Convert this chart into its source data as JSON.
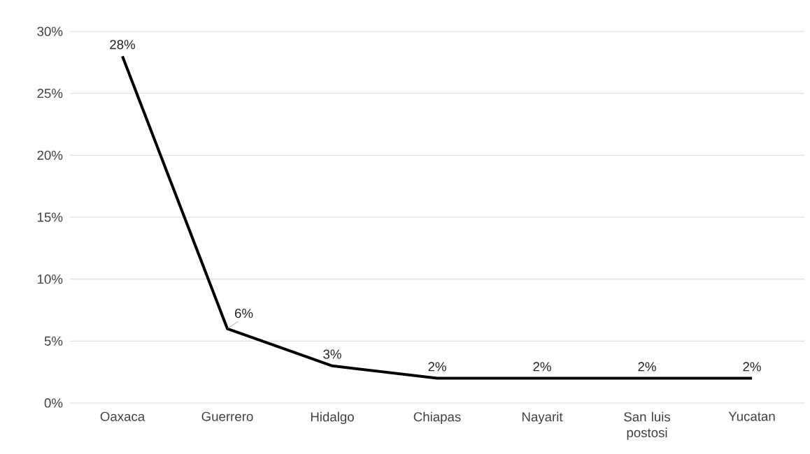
{
  "chart_data": {
    "type": "line",
    "categories": [
      "Oaxaca",
      "Guerrero",
      "Hidalgo",
      "Chiapas",
      "Nayarit",
      "San luis postosi",
      "Yucatan"
    ],
    "series": [
      {
        "color": "#000000",
        "values": [
          28,
          6,
          3,
          2,
          2,
          2,
          2
        ],
        "value_labels": [
          "28%",
          "6%",
          "3%",
          "2%",
          "2%",
          "2%",
          "2%"
        ]
      }
    ],
    "ylim": [
      0,
      30
    ],
    "yticks": [
      {
        "value": 0,
        "label": "0%"
      },
      {
        "value": 5,
        "label": "5%"
      },
      {
        "value": 10,
        "label": "10%"
      },
      {
        "value": 15,
        "label": "15%"
      },
      {
        "value": 20,
        "label": "20%"
      },
      {
        "value": 25,
        "label": "25%"
      },
      {
        "value": 30,
        "label": "30%"
      }
    ],
    "grid": "y",
    "legend": false,
    "marker": "none",
    "line_style": "solid"
  }
}
